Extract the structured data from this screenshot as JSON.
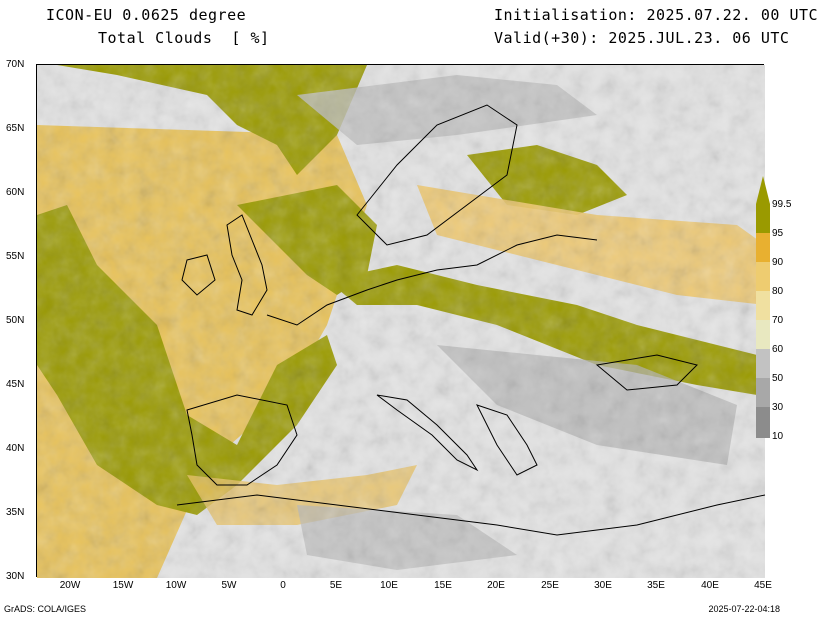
{
  "header": {
    "model": "ICON-EU 0.0625 degree",
    "field": "Total Clouds  [ %]",
    "init": "Initialisation: 2025.07.22. 00 UTC",
    "valid": "Valid(+30): 2025.JUL.23. 06 UTC"
  },
  "map": {
    "lat_ticks": [
      "70N",
      "65N",
      "60N",
      "55N",
      "50N",
      "45N",
      "40N",
      "35N",
      "30N"
    ],
    "lon_ticks": [
      "20W",
      "15W",
      "10W",
      "5W",
      "0",
      "5E",
      "10E",
      "15E",
      "20E",
      "25E",
      "30E",
      "35E",
      "40E",
      "45E"
    ],
    "lat_range": [
      30,
      70
    ],
    "lon_range": [
      -23,
      45
    ]
  },
  "colorbar": {
    "levels": [
      "10",
      "30",
      "50",
      "60",
      "70",
      "80",
      "90",
      "95",
      "99.5"
    ],
    "colors": [
      "#6e6e6e",
      "#8c8c8c",
      "#a8a8a8",
      "#c2c2c2",
      "#e8e8c0",
      "#f0e0a0",
      "#eecc70",
      "#e8b030",
      "#9a9a00"
    ]
  },
  "footer": {
    "left": "GrADS: COLA/IGES",
    "right": "2025-07-22-04:18"
  }
}
